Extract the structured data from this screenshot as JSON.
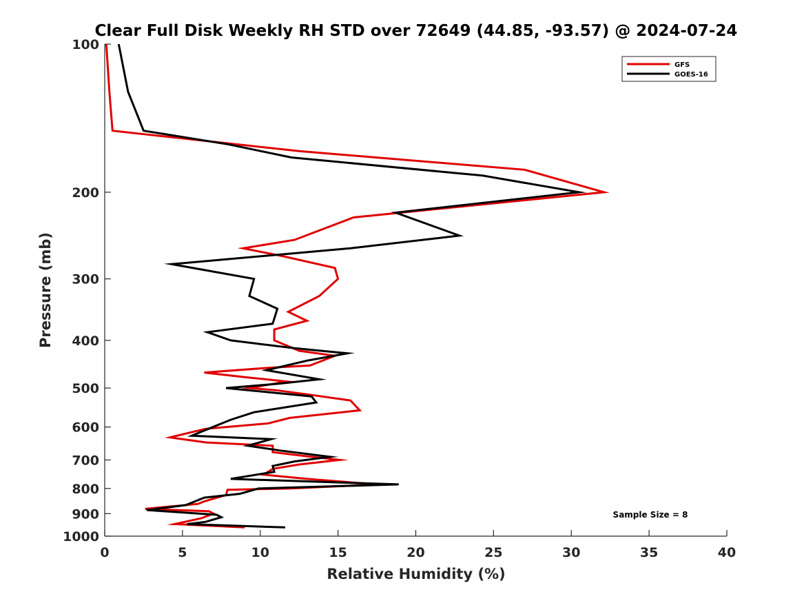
{
  "chart_data": {
    "type": "line",
    "title": "Clear Full Disk Weekly RH STD over 72649 (44.85, -93.57) @ 2024-07-24",
    "xlabel": "Relative Humidity (%)",
    "ylabel": "Pressure (mb)",
    "xlim": [
      0,
      40
    ],
    "ylim": [
      100,
      1000
    ],
    "yscale": "log",
    "y_reversed": true,
    "x_ticks": [
      0,
      5,
      10,
      15,
      20,
      25,
      30,
      35,
      40
    ],
    "y_ticks": [
      100,
      200,
      300,
      400,
      500,
      600,
      700,
      800,
      900,
      1000
    ],
    "grid": false,
    "legend_position": "top-right",
    "annotation": "Sample Size = 8",
    "series": [
      {
        "name": "GFS",
        "color": "#e00000",
        "points": [
          [
            0.1,
            100
          ],
          [
            0.3,
            125
          ],
          [
            0.5,
            150
          ],
          [
            12.5,
            165
          ],
          [
            27,
            180
          ],
          [
            32.1,
            200
          ],
          [
            16,
            225
          ],
          [
            12.2,
            250
          ],
          [
            8.9,
            260
          ],
          [
            11.5,
            270
          ],
          [
            14.8,
            285
          ],
          [
            15,
            300
          ],
          [
            13.8,
            325
          ],
          [
            11.8,
            350
          ],
          [
            13,
            365
          ],
          [
            10.9,
            380
          ],
          [
            10.9,
            400
          ],
          [
            12.5,
            420
          ],
          [
            14.8,
            430
          ],
          [
            13.2,
            450
          ],
          [
            10.5,
            455
          ],
          [
            6.4,
            465
          ],
          [
            9,
            475
          ],
          [
            11.7,
            485
          ],
          [
            9.3,
            500
          ],
          [
            11,
            505
          ],
          [
            13,
            515
          ],
          [
            15.8,
            530
          ],
          [
            16.4,
            555
          ],
          [
            11.9,
            575
          ],
          [
            10.5,
            590
          ],
          [
            6.5,
            605
          ],
          [
            4.2,
            630
          ],
          [
            6.5,
            645
          ],
          [
            10.8,
            655
          ],
          [
            10.8,
            675
          ],
          [
            12.5,
            685
          ],
          [
            15.1,
            700
          ],
          [
            12.5,
            715
          ],
          [
            10.8,
            730
          ],
          [
            10.2,
            750
          ],
          [
            13,
            765
          ],
          [
            17.5,
            785
          ],
          [
            12,
            800
          ],
          [
            7.9,
            805
          ],
          [
            7.8,
            825
          ],
          [
            6.4,
            850
          ],
          [
            6,
            860
          ],
          [
            2.6,
            880
          ],
          [
            6.7,
            890
          ],
          [
            7,
            900
          ],
          [
            6.2,
            920
          ],
          [
            4.5,
            945
          ],
          [
            9,
            960
          ]
        ]
      },
      {
        "name": "GOES-16",
        "color": "#000000",
        "points": [
          [
            0.9,
            100
          ],
          [
            1.5,
            125
          ],
          [
            2.5,
            150
          ],
          [
            8,
            160
          ],
          [
            12,
            170
          ],
          [
            24.3,
            185
          ],
          [
            30.5,
            200
          ],
          [
            18.7,
            220
          ],
          [
            22.8,
            245
          ],
          [
            15.8,
            260
          ],
          [
            4.3,
            280
          ],
          [
            9.6,
            300
          ],
          [
            9.3,
            325
          ],
          [
            11.1,
            345
          ],
          [
            10.8,
            370
          ],
          [
            6.6,
            385
          ],
          [
            8.1,
            400
          ],
          [
            12.2,
            415
          ],
          [
            15.6,
            425
          ],
          [
            13,
            440
          ],
          [
            10.4,
            460
          ],
          [
            13.8,
            480
          ],
          [
            11.2,
            490
          ],
          [
            7.8,
            500
          ],
          [
            13.3,
            520
          ],
          [
            13.6,
            535
          ],
          [
            9.6,
            560
          ],
          [
            8.1,
            580
          ],
          [
            6.4,
            610
          ],
          [
            5.6,
            625
          ],
          [
            10.7,
            635
          ],
          [
            9.2,
            655
          ],
          [
            11.3,
            670
          ],
          [
            14.5,
            690
          ],
          [
            12.2,
            705
          ],
          [
            10.8,
            720
          ],
          [
            10.9,
            740
          ],
          [
            8.1,
            765
          ],
          [
            18.9,
            785
          ],
          [
            9.9,
            800
          ],
          [
            8.7,
            820
          ],
          [
            6.4,
            835
          ],
          [
            5.2,
            865
          ],
          [
            2.7,
            885
          ],
          [
            7.2,
            905
          ],
          [
            7.5,
            915
          ],
          [
            6.5,
            935
          ],
          [
            5.3,
            945
          ],
          [
            11.6,
            960
          ]
        ]
      }
    ]
  }
}
